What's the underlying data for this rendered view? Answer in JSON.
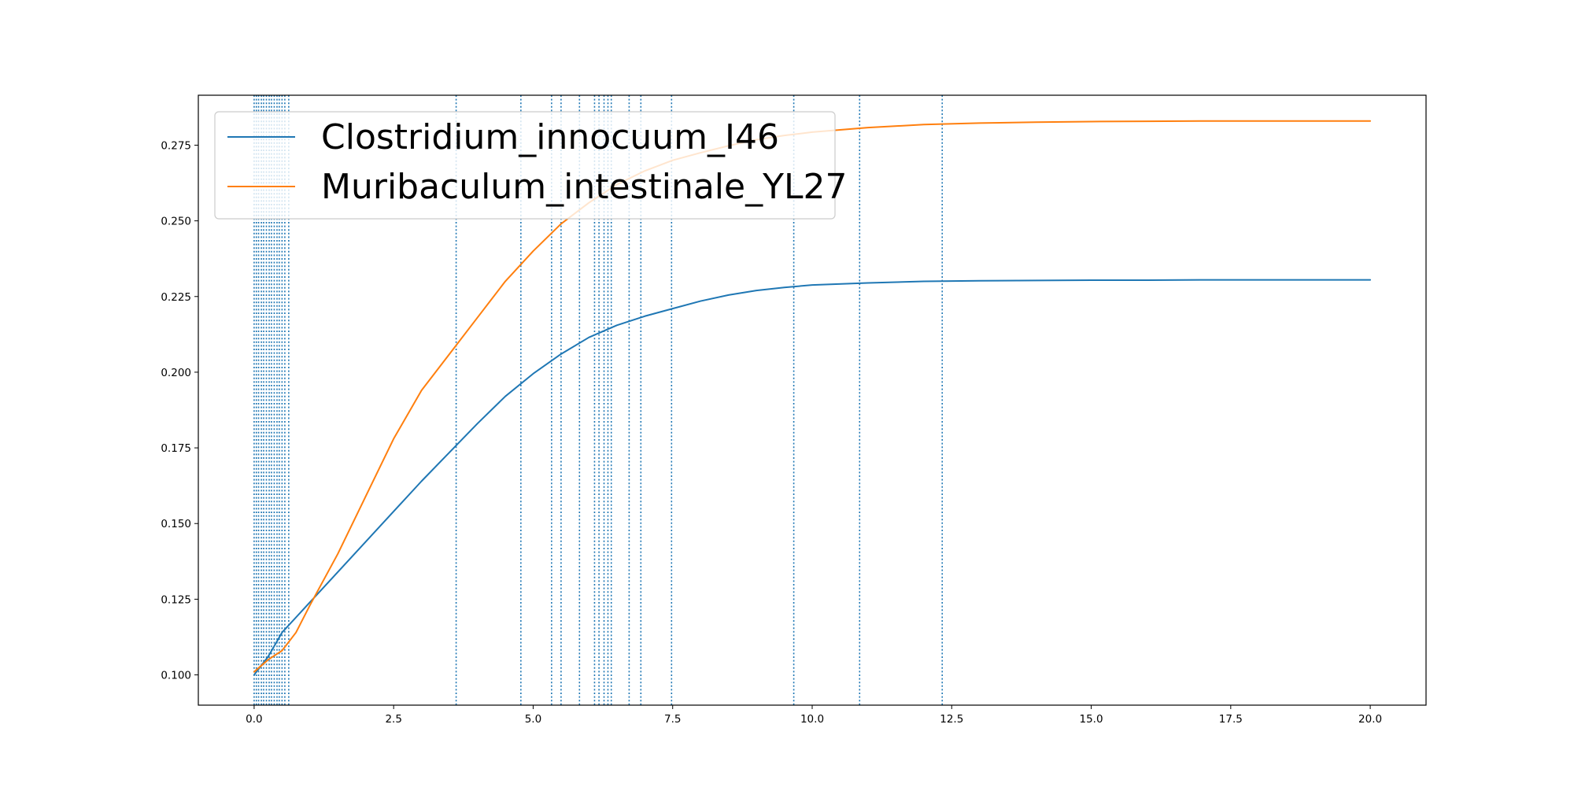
{
  "chart_data": {
    "type": "line",
    "title": "",
    "xlabel": "",
    "ylabel": "",
    "xlim": [
      -1.0,
      21.0
    ],
    "ylim": [
      0.09,
      0.2915
    ],
    "xticks": [
      0.0,
      2.5,
      5.0,
      7.5,
      10.0,
      12.5,
      15.0,
      17.5,
      20.0
    ],
    "xtick_labels": [
      "0.0",
      "2.5",
      "5.0",
      "7.5",
      "10.0",
      "12.5",
      "15.0",
      "17.5",
      "20.0"
    ],
    "yticks": [
      0.1,
      0.125,
      0.15,
      0.175,
      0.2,
      0.225,
      0.25,
      0.275
    ],
    "ytick_labels": [
      "0.100",
      "0.125",
      "0.150",
      "0.175",
      "0.200",
      "0.225",
      "0.250",
      "0.275"
    ],
    "grid": false,
    "legend_position": "upper-left",
    "series": [
      {
        "name": "Clostridium_innocuum_I46",
        "color": "#1f77b4",
        "x": [
          0.0,
          0.25,
          0.5,
          1.0,
          1.5,
          2.0,
          2.5,
          3.0,
          3.5,
          4.0,
          4.5,
          5.0,
          5.5,
          6.0,
          6.5,
          7.0,
          7.5,
          8.0,
          8.5,
          9.0,
          9.5,
          10.0,
          11.0,
          12.0,
          13.0,
          14.0,
          15.0,
          16.0,
          17.0,
          18.0,
          19.0,
          20.0
        ],
        "y": [
          0.1,
          0.106,
          0.114,
          0.124,
          0.134,
          0.144,
          0.154,
          0.164,
          0.1735,
          0.183,
          0.192,
          0.1995,
          0.206,
          0.2115,
          0.2155,
          0.2185,
          0.221,
          0.2235,
          0.2255,
          0.227,
          0.228,
          0.2288,
          0.2295,
          0.23,
          0.2302,
          0.2303,
          0.2304,
          0.2304,
          0.2305,
          0.2305,
          0.2305,
          0.2305
        ]
      },
      {
        "name": "Muribaculum_intestinale_YL27",
        "color": "#ff7f0e",
        "x": [
          0.0,
          0.25,
          0.5,
          0.75,
          1.0,
          1.5,
          2.0,
          2.5,
          3.0,
          3.5,
          4.0,
          4.5,
          5.0,
          5.5,
          6.0,
          6.5,
          7.0,
          7.5,
          8.0,
          8.5,
          9.0,
          9.5,
          10.0,
          11.0,
          12.0,
          13.0,
          14.0,
          15.0,
          16.0,
          17.0,
          18.0,
          19.0,
          20.0
        ],
        "y": [
          0.101,
          0.105,
          0.108,
          0.114,
          0.123,
          0.14,
          0.159,
          0.178,
          0.194,
          0.206,
          0.218,
          0.23,
          0.24,
          0.249,
          0.256,
          0.262,
          0.2665,
          0.27,
          0.2725,
          0.2748,
          0.2768,
          0.2782,
          0.2793,
          0.2808,
          0.2818,
          0.2823,
          0.2826,
          0.2828,
          0.2829,
          0.283,
          0.283,
          0.283,
          0.283
        ]
      }
    ],
    "vlines": {
      "color": "#1f77b4",
      "style": "dotted",
      "x": [
        0.0,
        0.04,
        0.08,
        0.13,
        0.17,
        0.22,
        0.27,
        0.31,
        0.36,
        0.41,
        0.45,
        0.5,
        0.55,
        0.62,
        3.62,
        4.78,
        5.33,
        5.5,
        5.83,
        6.1,
        6.18,
        6.27,
        6.34,
        6.4,
        6.72,
        6.93,
        7.48,
        9.67,
        10.85,
        12.33
      ]
    }
  }
}
